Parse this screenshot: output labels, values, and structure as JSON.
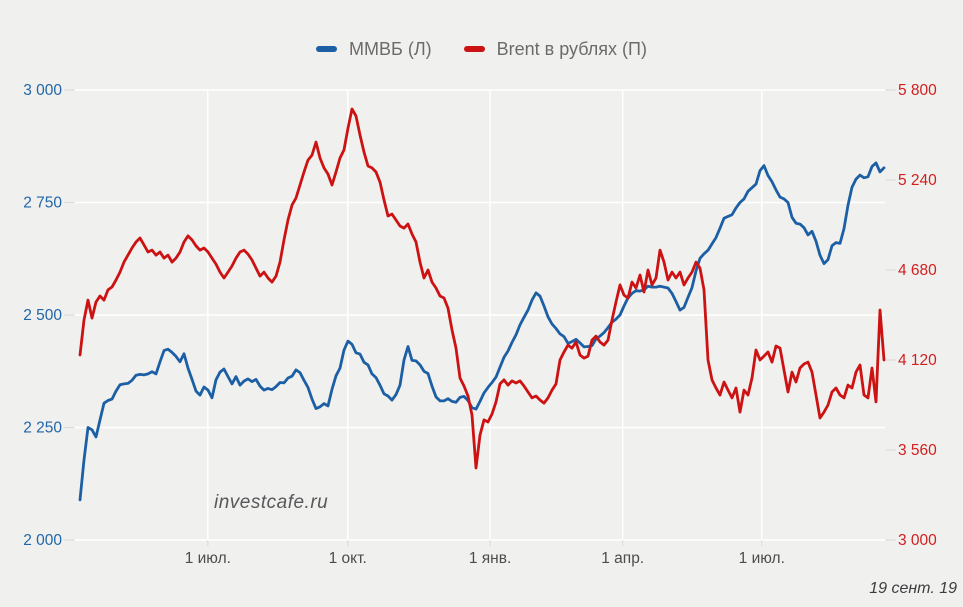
{
  "legend": {
    "items": [
      {
        "label": "ММВБ (Л)",
        "color": "#1c5fa4"
      },
      {
        "label": "Brent в рублях (П)",
        "color": "#cc1212"
      }
    ]
  },
  "watermark": "investcafe.ru",
  "footer_date": "19 сент. 19",
  "colors": {
    "background": "#f0f0ee",
    "gridline": "#ffffff",
    "tick": "#d9d9d6",
    "left_axis_text": "#2166a8",
    "right_axis_text": "#d02020",
    "x_axis_text": "#4c4c4c"
  },
  "chart_data": {
    "type": "line",
    "title": "",
    "xlabel": "",
    "ylabel_left": "",
    "ylabel_right": "",
    "grid": true,
    "legend_position": "top",
    "x_ticks": [
      {
        "label": "1 июл.",
        "t": 0.159
      },
      {
        "label": "1 окт.",
        "t": 0.333
      },
      {
        "label": "1 янв.",
        "t": 0.51
      },
      {
        "label": "1 апр.",
        "t": 0.675
      },
      {
        "label": "1 июл.",
        "t": 0.848
      }
    ],
    "left_axis": {
      "min": 2000,
      "max": 3000,
      "ticks": [
        {
          "label": "3 000",
          "value": 3000
        },
        {
          "label": "2 750",
          "value": 2750
        },
        {
          "label": "2 500",
          "value": 2500
        },
        {
          "label": "2 250",
          "value": 2250
        },
        {
          "label": "2 000",
          "value": 2000
        }
      ]
    },
    "right_axis": {
      "min": 3000,
      "max": 5800,
      "ticks": [
        {
          "label": "5 800",
          "value": 5800
        },
        {
          "label": "5 240",
          "value": 5240
        },
        {
          "label": "4 680",
          "value": 4680
        },
        {
          "label": "4 120",
          "value": 4120
        },
        {
          "label": "3 560",
          "value": 3560
        },
        {
          "label": "3 000",
          "value": 3000
        }
      ]
    },
    "series": [
      {
        "name": "ММВБ (Л)",
        "axis": "left",
        "color": "#1c5fa4",
        "values": [
          2089,
          2178,
          2250,
          2245,
          2229,
          2267,
          2304,
          2310,
          2313,
          2331,
          2345,
          2347,
          2348,
          2355,
          2366,
          2368,
          2367,
          2369,
          2374,
          2369,
          2396,
          2421,
          2424,
          2417,
          2408,
          2396,
          2414,
          2382,
          2357,
          2331,
          2322,
          2340,
          2333,
          2316,
          2356,
          2373,
          2380,
          2363,
          2347,
          2363,
          2344,
          2353,
          2358,
          2352,
          2357,
          2342,
          2333,
          2337,
          2334,
          2341,
          2350,
          2349,
          2360,
          2364,
          2378,
          2372,
          2355,
          2339,
          2313,
          2292,
          2296,
          2303,
          2298,
          2335,
          2365,
          2382,
          2422,
          2442,
          2435,
          2416,
          2413,
          2395,
          2389,
          2369,
          2361,
          2344,
          2325,
          2320,
          2311,
          2323,
          2344,
          2400,
          2430,
          2399,
          2398,
          2389,
          2375,
          2370,
          2342,
          2318,
          2309,
          2309,
          2314,
          2308,
          2306,
          2317,
          2319,
          2310,
          2294,
          2291,
          2308,
          2327,
          2339,
          2350,
          2362,
          2384,
          2406,
          2420,
          2439,
          2456,
          2478,
          2495,
          2511,
          2533,
          2549,
          2542,
          2520,
          2496,
          2480,
          2470,
          2458,
          2452,
          2437,
          2441,
          2446,
          2438,
          2429,
          2430,
          2432,
          2447,
          2453,
          2461,
          2472,
          2484,
          2491,
          2500,
          2520,
          2538,
          2548,
          2554,
          2553,
          2556,
          2564,
          2562,
          2562,
          2564,
          2562,
          2560,
          2548,
          2530,
          2511,
          2517,
          2539,
          2561,
          2598,
          2626,
          2636,
          2644,
          2658,
          2672,
          2693,
          2715,
          2719,
          2723,
          2738,
          2750,
          2758,
          2775,
          2783,
          2791,
          2821,
          2832,
          2810,
          2796,
          2778,
          2762,
          2758,
          2750,
          2717,
          2704,
          2702,
          2694,
          2678,
          2686,
          2664,
          2633,
          2614,
          2623,
          2654,
          2661,
          2659,
          2692,
          2744,
          2784,
          2802,
          2811,
          2805,
          2807,
          2830,
          2838,
          2818,
          2827
        ]
      },
      {
        "name": "Brent в рублях (П)",
        "axis": "right",
        "color": "#cc1212",
        "values": [
          4151,
          4369,
          4493,
          4381,
          4481,
          4518,
          4493,
          4556,
          4574,
          4618,
          4667,
          4729,
          4773,
          4817,
          4854,
          4879,
          4836,
          4792,
          4804,
          4773,
          4792,
          4754,
          4773,
          4729,
          4754,
          4792,
          4854,
          4892,
          4867,
          4830,
          4804,
          4817,
          4792,
          4754,
          4717,
          4667,
          4630,
          4667,
          4705,
          4754,
          4792,
          4804,
          4779,
          4742,
          4692,
          4642,
          4667,
          4630,
          4605,
          4642,
          4729,
          4867,
          4991,
          5084,
          5128,
          5209,
          5290,
          5364,
          5395,
          5476,
          5377,
          5315,
          5277,
          5209,
          5290,
          5377,
          5427,
          5563,
          5682,
          5638,
          5520,
          5414,
          5327,
          5315,
          5290,
          5227,
          5116,
          5016,
          5028,
          4991,
          4954,
          4941,
          4966,
          4904,
          4854,
          4729,
          4630,
          4680,
          4605,
          4568,
          4518,
          4506,
          4443,
          4307,
          4194,
          4008,
          3958,
          3896,
          3778,
          3448,
          3653,
          3747,
          3734,
          3784,
          3859,
          3971,
          3996,
          3964,
          3990,
          3977,
          3990,
          3958,
          3921,
          3884,
          3896,
          3871,
          3852,
          3884,
          3933,
          3971,
          4120,
          4170,
          4213,
          4194,
          4232,
          4151,
          4132,
          4144,
          4244,
          4269,
          4232,
          4213,
          4244,
          4369,
          4481,
          4587,
          4524,
          4506,
          4605,
          4568,
          4649,
          4543,
          4680,
          4587,
          4630,
          4804,
          4729,
          4618,
          4667,
          4630,
          4667,
          4587,
          4630,
          4667,
          4729,
          4692,
          4556,
          4120,
          3996,
          3946,
          3902,
          3983,
          3933,
          3884,
          3946,
          3796,
          3933,
          3902,
          4008,
          4182,
          4120,
          4144,
          4170,
          4107,
          4207,
          4194,
          4058,
          3921,
          4045,
          3983,
          4070,
          4095,
          4107,
          4045,
          3902,
          3759,
          3796,
          3840,
          3921,
          3946,
          3902,
          3884,
          3964,
          3946,
          4045,
          4089,
          3902,
          3884,
          4070,
          3859,
          4431,
          4120
        ]
      }
    ]
  }
}
